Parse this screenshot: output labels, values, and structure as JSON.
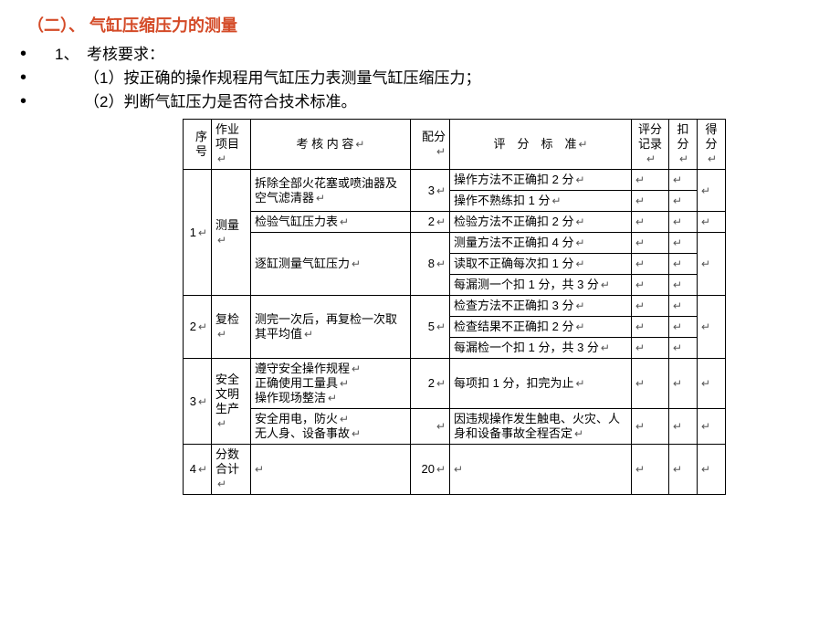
{
  "heading": "（二）、 气缸压缩压力的测量",
  "bullets": {
    "b1": "1、　考核要求：",
    "b2": "（1）按正确的操作规程用气缸压力表测量气缸压缩压力；",
    "b3": "（2）判断气缸压力是否符合技术标准。"
  },
  "mark": "↵",
  "table": {
    "headers": {
      "seq": "序号",
      "item": "作业项目",
      "cont": "考 核 内 容",
      "score": "配分",
      "crit": "评　分　标　准",
      "rec": "评分记录",
      "ded": "扣分",
      "get": "得分"
    },
    "rows": {
      "r1": {
        "seq": "1",
        "item": "测量",
        "c1_content": "拆除全部火花塞或喷油器及空气滤清器",
        "c1_score": "3",
        "c1_crit_a": "操作方法不正确扣 2 分",
        "c1_crit_b": "操作不熟练扣 1 分",
        "c2_content": "检验气缸压力表",
        "c2_score": "2",
        "c2_crit": "检验方法不正确扣 2 分",
        "c3_content": "逐缸测量气缸压力",
        "c3_score": "8",
        "c3_crit_a": "测量方法不正确扣 4 分",
        "c3_crit_b": "读取不正确每次扣 1 分",
        "c3_crit_c": "每漏测一个扣 1 分，共 3 分"
      },
      "r2": {
        "seq": "2",
        "item": "复检",
        "content": "测完一次后，再复检一次取其平均值",
        "score": "5",
        "crit_a": "检查方法不正确扣 3 分",
        "crit_b": "检查结果不正确扣 2 分",
        "crit_c": "每漏检一个扣 1 分，共 3 分"
      },
      "r3": {
        "seq": "3",
        "item": "安全文明生产",
        "c1_content_l1": "遵守安全操作规程",
        "c1_content_l2": "正确使用工量具",
        "c1_content_l3": "操作现场整洁",
        "c1_score": "2",
        "c1_crit": "每项扣 1 分，扣完为止",
        "c2_content_l1": "安全用电，防火",
        "c2_content_l2": "无人身、设备事故",
        "c2_crit": "因违规操作发生触电、火灾、人身和设备事故全程否定"
      },
      "r4": {
        "seq": "4",
        "item": "分数合计",
        "score": "20"
      }
    }
  }
}
